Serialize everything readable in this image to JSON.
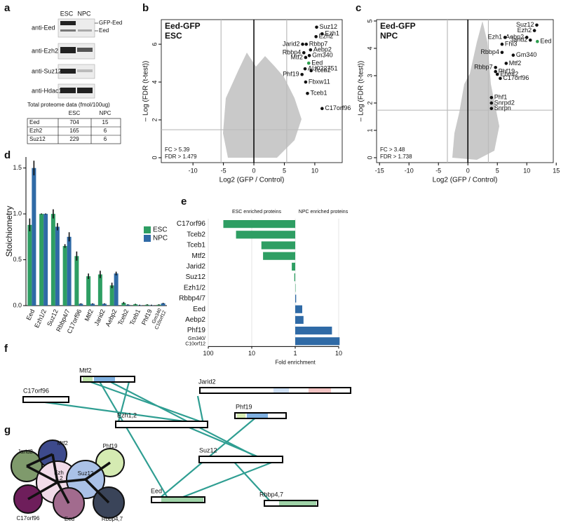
{
  "panel_a": {
    "letter": "a",
    "lanes": [
      "ESC",
      "NPC"
    ],
    "antibodies": [
      "anti-Eed",
      "anti-Ezh2",
      "anti-Suz12",
      "anti-Hdac1"
    ],
    "band_labels": [
      "GFP-Eed",
      "Eed"
    ],
    "table": {
      "title": "Total proteome data (fmol/100ug)",
      "columns": [
        "ESC",
        "NPC"
      ],
      "rows": [
        [
          "Eed",
          704,
          15
        ],
        [
          "Ezh2",
          165,
          6
        ],
        [
          "Suz12",
          229,
          6
        ]
      ]
    }
  },
  "chart_data": [
    {
      "letter": "b",
      "type": "scatter",
      "title": "Eed-GFP",
      "subtitle": "ESC",
      "xlabel": "Log2 (GFP / Control)",
      "ylabel": "– Log (FDR (t-test))",
      "xlim": [
        -15.2,
        14.5
      ],
      "ylim": [
        -0.26,
        7.3
      ],
      "xticks": [
        -10,
        -5,
        0,
        5,
        10
      ],
      "yticks": [
        0,
        2,
        4,
        6
      ],
      "fc_threshold": 5.39,
      "fdr_threshold": 1.479,
      "threshold_labels": [
        "FC > 5.39",
        "FDR > 1.479"
      ],
      "points": {
        "labels": [
          "Suz12",
          "Ezh1",
          "Ezh2",
          "Jarid2",
          "Rbbp7",
          "Aebp2",
          "Rbbp4",
          "Gm340",
          "Mtf2",
          "Eed",
          "AU022751",
          "Phf19",
          "Tceb2",
          "Fbxw11",
          "Tceb1",
          "C17orf96"
        ],
        "x": [
          10.3,
          11.2,
          10.2,
          8.0,
          8.6,
          9.3,
          8.2,
          9.1,
          8.5,
          9.0,
          8.4,
          7.9,
          9.4,
          8.5,
          8.8,
          11.2
        ],
        "y": [
          6.9,
          6.55,
          6.4,
          6.0,
          6.0,
          5.7,
          5.55,
          5.4,
          5.3,
          5.0,
          4.7,
          4.4,
          4.6,
          4.0,
          3.4,
          2.6
        ],
        "colors": [
          "#111111",
          "#111111",
          "#111111",
          "#111111",
          "#111111",
          "#111111",
          "#111111",
          "#111111",
          "#111111",
          "#2e9e4f",
          "#111111",
          "#111111",
          "#111111",
          "#111111",
          "#111111",
          "#111111"
        ]
      }
    },
    {
      "letter": "c",
      "type": "scatter",
      "title": "Eed-GFP",
      "subtitle": "NPC",
      "xlabel": "Log2 (GFP / Control)",
      "ylabel": "– Log (FDR (t-test))",
      "xlim": [
        -15.5,
        14.5
      ],
      "ylim": [
        -0.18,
        5.05
      ],
      "xticks": [
        -15,
        -10,
        -5,
        0,
        5,
        10,
        15
      ],
      "yticks": [
        0,
        1,
        2,
        3,
        4,
        5
      ],
      "fc_threshold": 3.48,
      "fdr_threshold": 1.738,
      "threshold_labels": [
        "FC > 3.48",
        "FDR > 1.738"
      ],
      "points": {
        "labels": [
          "Suz12",
          "Ezh2",
          "Aebp2",
          "Ezh1",
          "Jarid2",
          "Eed",
          "Fhl3",
          "Rbbp4",
          "Gm340",
          "Mtf2",
          "Rbbp7",
          "Phf19",
          "Ehmt2",
          "C17orf96",
          "Phf1",
          "Snrpd2",
          "Snrpn"
        ],
        "x": [
          11.7,
          11.3,
          10.0,
          6.3,
          10.6,
          11.8,
          5.8,
          5.8,
          7.7,
          6.5,
          4.7,
          4.7,
          5.0,
          5.5,
          4.0,
          4.0,
          4.0
        ],
        "y": [
          4.85,
          4.65,
          4.4,
          4.4,
          4.3,
          4.25,
          4.15,
          3.85,
          3.75,
          3.45,
          3.3,
          3.15,
          3.05,
          2.9,
          2.2,
          2.0,
          1.8
        ],
        "colors": [
          "#111111",
          "#111111",
          "#111111",
          "#111111",
          "#111111",
          "#2e9e4f",
          "#111111",
          "#111111",
          "#111111",
          "#111111",
          "#111111",
          "#111111",
          "#111111",
          "#111111",
          "#111111",
          "#111111",
          "#111111"
        ]
      }
    },
    {
      "letter": "d",
      "type": "bar",
      "ylabel": "Stoichiometry",
      "categories": [
        "Eed",
        "Ezh1/2",
        "Suz12",
        "Rbbp4/7",
        "C17orf96",
        "Mtf2",
        "Jarid2",
        "Aebp2",
        "Tceb2",
        "Tceb1",
        "Phf19",
        "Gm340\nC10orf12"
      ],
      "ylim": [
        0,
        1.62
      ],
      "yticks": [
        {
          "value": 0,
          "label": "0.0"
        },
        {
          "value": 0.5,
          "label": "0.5"
        },
        {
          "value": 1,
          "label": "1.0"
        },
        {
          "value": 1.5,
          "label": "1.5"
        }
      ],
      "series": [
        {
          "name": "ESC",
          "color": "#2e9e63",
          "values": [
            0.88,
            1.0,
            1.0,
            0.65,
            0.54,
            0.32,
            0.34,
            0.22,
            0.03,
            0.015,
            0.01,
            0.01
          ],
          "errors": [
            0.07,
            0.005,
            0.05,
            0.02,
            0.05,
            0.03,
            0.04,
            0.03,
            0.01,
            0.005,
            0.005,
            0.005
          ]
        },
        {
          "name": "NPC",
          "color": "#2f6aa6",
          "values": [
            1.5,
            1.0,
            0.86,
            0.75,
            0.02,
            0.02,
            0.02,
            0.35,
            0.01,
            0.005,
            0.005,
            0.025
          ],
          "errors": [
            0.08,
            0.005,
            0.04,
            0.05,
            0.005,
            0.005,
            0.005,
            0.02,
            0.005,
            0.005,
            0.005,
            0.005
          ]
        }
      ]
    },
    {
      "letter": "e",
      "type": "barh",
      "xlabel": "Fold enrichment",
      "categories": [
        "C17orf96",
        "Tceb2",
        "Tceb1",
        "Mtf2",
        "Jarid2",
        "Suz12",
        "Ezh1/2",
        "Rbbp4/7",
        "Eed",
        "Aebp2",
        "Phf19",
        "Gm340/\nC10orf12"
      ],
      "xticks_left": [
        100,
        10,
        1
      ],
      "xticks_right": [
        10
      ],
      "series": [
        {
          "name": "ESC enriched proteins",
          "color": "#2e9e63",
          "side": "left",
          "values": [
            45,
            23,
            6,
            5.5,
            1.2,
            1.05,
            1.0,
            null,
            null,
            null,
            null,
            null
          ]
        },
        {
          "name": "NPC enriched proteins",
          "color": "#2f6aa6",
          "side": "right",
          "values": [
            null,
            null,
            null,
            null,
            null,
            null,
            null,
            1.05,
            1.45,
            1.55,
            7,
            10.5
          ]
        }
      ]
    }
  ],
  "panel_f": {
    "letter": "f",
    "labels": [
      "Mtf2",
      "C17orf96",
      "Jarid2",
      "Ezh1,2",
      "Phf19",
      "Suz12",
      "Eed",
      "Rbbp4,7"
    ]
  },
  "panel_g": {
    "letter": "g",
    "labels": [
      "Jarid2",
      "Mtf2",
      "Ezh\n1,2",
      "Suz12",
      "Phf19",
      "C17orf96",
      "Eed",
      "Rbbp4,7"
    ]
  }
}
